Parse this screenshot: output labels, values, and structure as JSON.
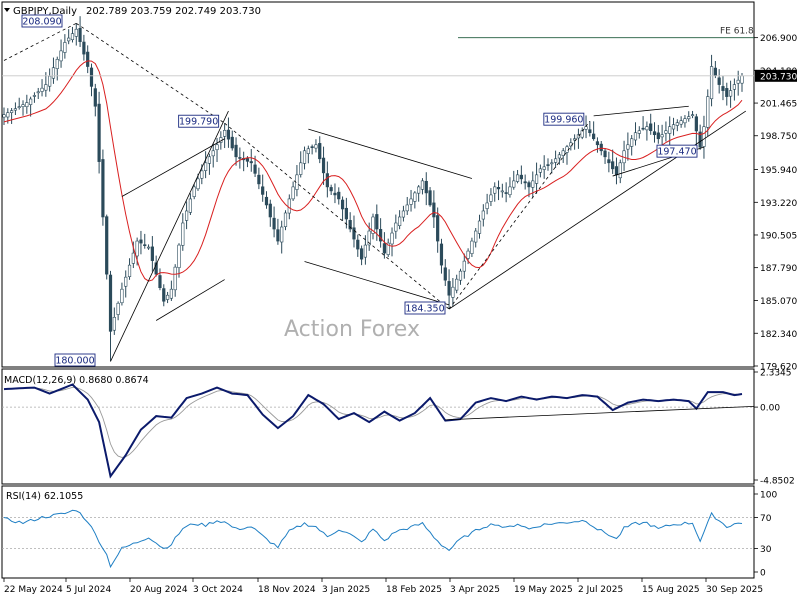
{
  "header": {
    "symbol_label": "GBPJPY,Daily",
    "ohlc": "202.789 203.759 202.749 203.730"
  },
  "watermark": "Action Forex",
  "chart_data": [
    {
      "type": "candlestick",
      "pane": "price",
      "ylim": [
        179.62,
        208.2
      ],
      "price_ticks": [
        "206.900",
        "204.180",
        "201.465",
        "198.750",
        "195.940",
        "193.220",
        "190.505",
        "187.790",
        "185.070",
        "182.340",
        "179.620"
      ],
      "x_ticks": [
        "22 May 2024",
        "5 Jul 2024",
        "20 Aug 2024",
        "3 Oct 2024",
        "18 Nov 2024",
        "3 Jan 2025",
        "18 Feb 2025",
        "3 Apr 2025",
        "19 May 2025",
        "2 Jul 2025",
        "15 Aug 2025",
        "30 Sep 2025"
      ],
      "last_price": "203.730",
      "fe_level": {
        "label": "FE 61.8",
        "value": 206.9
      },
      "annotations": [
        {
          "label": "208.090",
          "idx": 19,
          "value": 208.09
        },
        {
          "label": "180.000",
          "idx": 28,
          "value": 180.0
        },
        {
          "label": "199.790",
          "idx": 58,
          "value": 199.79
        },
        {
          "label": "184.350",
          "idx": 117,
          "value": 184.35
        },
        {
          "label": "199.960",
          "idx": 154,
          "value": 199.96
        },
        {
          "label": "197.470",
          "idx": 182,
          "value": 197.47
        }
      ],
      "anchors": [
        [
          0,
          200.5
        ],
        [
          6,
          201.5
        ],
        [
          11,
          203.0
        ],
        [
          16,
          206.5
        ],
        [
          19,
          207.6
        ],
        [
          22,
          204.5
        ],
        [
          24,
          201.2
        ],
        [
          26,
          192.0
        ],
        [
          28,
          182.5
        ],
        [
          31,
          186.0
        ],
        [
          35,
          190.0
        ],
        [
          38,
          189.5
        ],
        [
          42,
          185.0
        ],
        [
          44,
          186.0
        ],
        [
          47,
          191.5
        ],
        [
          50,
          194.5
        ],
        [
          53,
          196.5
        ],
        [
          56,
          198.0
        ],
        [
          58,
          199.2
        ],
        [
          61,
          197.0
        ],
        [
          65,
          196.5
        ],
        [
          69,
          193.0
        ],
        [
          72,
          190.0
        ],
        [
          75,
          193.5
        ],
        [
          79,
          197.5
        ],
        [
          82,
          198.0
        ],
        [
          85,
          194.5
        ],
        [
          88,
          193.5
        ],
        [
          91,
          191.0
        ],
        [
          94,
          188.5
        ],
        [
          97,
          192.0
        ],
        [
          100,
          189.0
        ],
        [
          103,
          191.5
        ],
        [
          106,
          193.0
        ],
        [
          110,
          195.0
        ],
        [
          113,
          192.0
        ],
        [
          115,
          188.0
        ],
        [
          117,
          185.5
        ],
        [
          120,
          187.5
        ],
        [
          123,
          190.0
        ],
        [
          126,
          192.5
        ],
        [
          129,
          194.5
        ],
        [
          132,
          194.0
        ],
        [
          135,
          195.5
        ],
        [
          138,
          194.5
        ],
        [
          141,
          196.0
        ],
        [
          144,
          196.5
        ],
        [
          147,
          197.5
        ],
        [
          150,
          198.5
        ],
        [
          153,
          199.5
        ],
        [
          156,
          198.0
        ],
        [
          159,
          196.5
        ],
        [
          161,
          195.5
        ],
        [
          163,
          197.5
        ],
        [
          166,
          199.0
        ],
        [
          169,
          199.5
        ],
        [
          172,
          198.5
        ],
        [
          175,
          199.5
        ],
        [
          178,
          200.0
        ],
        [
          181,
          200.5
        ],
        [
          183,
          197.8
        ],
        [
          184,
          199.5
        ],
        [
          186,
          204.5
        ],
        [
          188,
          203.0
        ],
        [
          190,
          202.0
        ],
        [
          192,
          203.0
        ],
        [
          194,
          203.73
        ]
      ]
    },
    {
      "type": "line",
      "pane": "macd",
      "label": "MACD(12,26,9) 0.8680 0.8674",
      "ylim": [
        -4.85,
        2.3345
      ],
      "y_ticks": [
        "2.3345",
        "0.00",
        "-4.8502"
      ],
      "anchors": [
        [
          0,
          1.2
        ],
        [
          8,
          1.3
        ],
        [
          12,
          0.9
        ],
        [
          18,
          1.5
        ],
        [
          22,
          0.5
        ],
        [
          25,
          -1.0
        ],
        [
          28,
          -4.6
        ],
        [
          32,
          -3.2
        ],
        [
          36,
          -1.5
        ],
        [
          40,
          -0.6
        ],
        [
          44,
          -0.7
        ],
        [
          48,
          0.6
        ],
        [
          52,
          0.9
        ],
        [
          56,
          1.3
        ],
        [
          60,
          0.9
        ],
        [
          64,
          0.8
        ],
        [
          68,
          -0.5
        ],
        [
          72,
          -1.4
        ],
        [
          76,
          -0.6
        ],
        [
          80,
          0.8
        ],
        [
          84,
          0.2
        ],
        [
          88,
          -0.8
        ],
        [
          92,
          -0.4
        ],
        [
          96,
          -1.0
        ],
        [
          100,
          -0.3
        ],
        [
          104,
          -0.9
        ],
        [
          108,
          -0.4
        ],
        [
          112,
          0.6
        ],
        [
          116,
          -0.9
        ],
        [
          120,
          -0.8
        ],
        [
          124,
          0.3
        ],
        [
          128,
          0.6
        ],
        [
          132,
          0.4
        ],
        [
          136,
          0.7
        ],
        [
          140,
          0.5
        ],
        [
          144,
          0.7
        ],
        [
          148,
          0.6
        ],
        [
          152,
          0.8
        ],
        [
          156,
          0.7
        ],
        [
          160,
          -0.2
        ],
        [
          164,
          0.3
        ],
        [
          168,
          0.5
        ],
        [
          172,
          0.4
        ],
        [
          176,
          0.5
        ],
        [
          180,
          0.4
        ],
        [
          182,
          -0.1
        ],
        [
          185,
          1.0
        ],
        [
          189,
          1.0
        ],
        [
          192,
          0.8
        ],
        [
          194,
          0.868
        ]
      ]
    },
    {
      "type": "line",
      "pane": "rsi",
      "label": "RSI(14) 62.1055",
      "ylim": [
        0,
        100
      ],
      "y_ticks": [
        "100",
        "70",
        "30",
        "0"
      ],
      "anchors": [
        [
          0,
          68
        ],
        [
          5,
          63
        ],
        [
          10,
          70
        ],
        [
          16,
          75
        ],
        [
          19,
          80
        ],
        [
          22,
          65
        ],
        [
          25,
          40
        ],
        [
          27,
          22
        ],
        [
          28,
          8
        ],
        [
          31,
          30
        ],
        [
          35,
          38
        ],
        [
          38,
          45
        ],
        [
          42,
          30
        ],
        [
          44,
          36
        ],
        [
          47,
          56
        ],
        [
          50,
          62
        ],
        [
          53,
          60
        ],
        [
          56,
          66
        ],
        [
          58,
          64
        ],
        [
          61,
          55
        ],
        [
          65,
          58
        ],
        [
          69,
          42
        ],
        [
          72,
          32
        ],
        [
          75,
          52
        ],
        [
          79,
          62
        ],
        [
          82,
          58
        ],
        [
          85,
          45
        ],
        [
          88,
          55
        ],
        [
          91,
          48
        ],
        [
          94,
          38
        ],
        [
          97,
          55
        ],
        [
          100,
          40
        ],
        [
          103,
          52
        ],
        [
          106,
          56
        ],
        [
          110,
          62
        ],
        [
          113,
          45
        ],
        [
          115,
          35
        ],
        [
          117,
          28
        ],
        [
          120,
          42
        ],
        [
          123,
          50
        ],
        [
          126,
          58
        ],
        [
          129,
          62
        ],
        [
          132,
          56
        ],
        [
          135,
          62
        ],
        [
          138,
          55
        ],
        [
          141,
          60
        ],
        [
          144,
          62
        ],
        [
          147,
          63
        ],
        [
          150,
          65
        ],
        [
          153,
          66
        ],
        [
          156,
          55
        ],
        [
          159,
          48
        ],
        [
          161,
          42
        ],
        [
          163,
          56
        ],
        [
          166,
          62
        ],
        [
          169,
          63
        ],
        [
          172,
          55
        ],
        [
          175,
          60
        ],
        [
          178,
          62
        ],
        [
          181,
          63
        ],
        [
          183,
          40
        ],
        [
          186,
          74
        ],
        [
          188,
          66
        ],
        [
          190,
          58
        ],
        [
          192,
          62
        ],
        [
          194,
          62.1
        ]
      ]
    }
  ]
}
